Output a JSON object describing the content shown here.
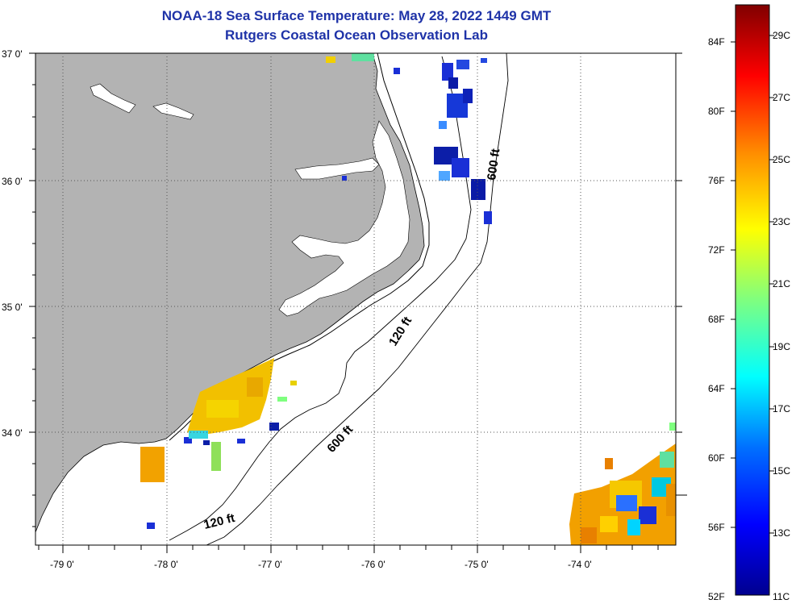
{
  "header": {
    "title": "NOAA-18 Sea Surface Temperature:  May 28, 2022 1449 GMT",
    "subtitle": "Rutgers Coastal Ocean Observation Lab"
  },
  "axes": {
    "lat_labels": [
      "37 0'",
      "36 0'",
      "35 0'",
      "34 0'"
    ],
    "lon_labels": [
      "-79 0'",
      "-78 0'",
      "-77 0'",
      "-76 0'",
      "-75 0'",
      "-74 0'"
    ]
  },
  "contour_labels": [
    "600 ft",
    "120 ft",
    "600 ft",
    "120 ft"
  ],
  "colorbar": {
    "fahrenheit": [
      "84F",
      "80F",
      "76F",
      "72F",
      "68F",
      "64F",
      "60F",
      "56F",
      "52F"
    ],
    "celsius": [
      "29C",
      "27C",
      "25C",
      "23C",
      "21C",
      "19C",
      "17C",
      "15C",
      "13C",
      "11C"
    ]
  },
  "colors": {
    "land": "#b3b3b3",
    "title": "#1f33a8"
  }
}
